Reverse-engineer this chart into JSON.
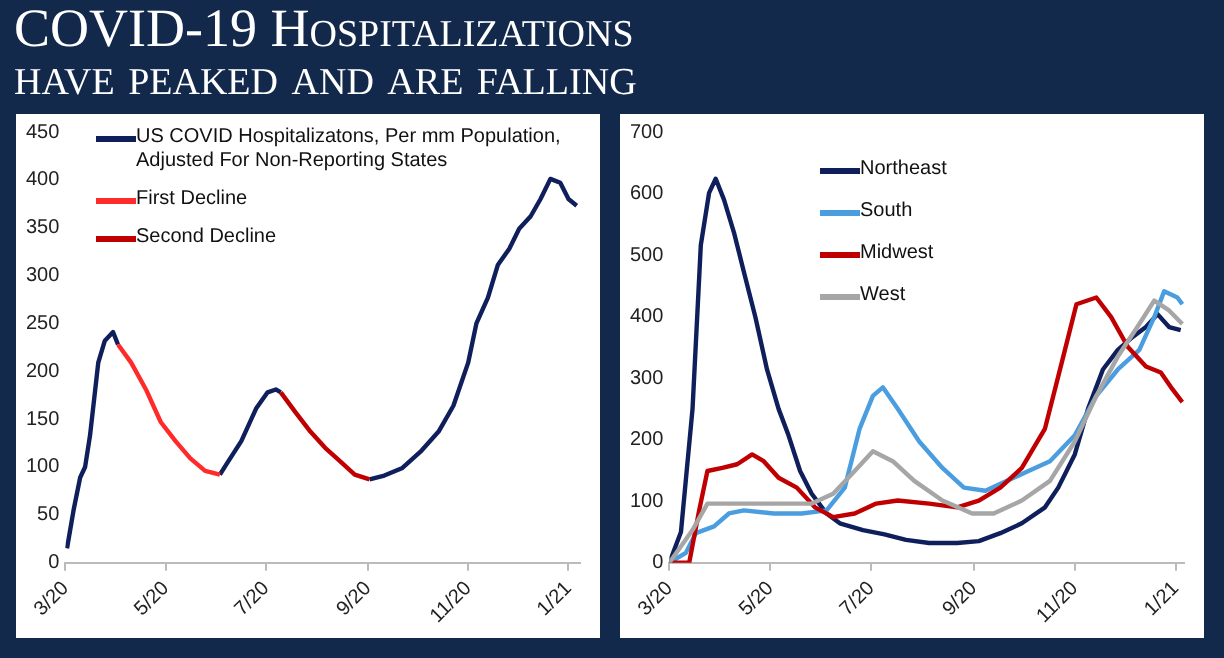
{
  "chart_data": [
    {
      "type": "line",
      "title": "COVID-19 Hospitalizations",
      "subtitle": "have peaked and are falling",
      "legend": "top left",
      "grid": false,
      "line_style": "solid",
      "xlim": [
        "2020-03-01",
        "2021-01-08"
      ],
      "xticks": [
        {
          "value": "2020-03-01",
          "label": "3/20"
        },
        {
          "value": "2020-05-01",
          "label": "5/20"
        },
        {
          "value": "2020-07-01",
          "label": "7/20"
        },
        {
          "value": "2020-09-01",
          "label": "9/20"
        },
        {
          "value": "2020-11-01",
          "label": "11/20"
        },
        {
          "value": "2021-01-01",
          "label": "1/21"
        }
      ],
      "ylim": [
        0,
        450
      ],
      "yticks": [
        0,
        50,
        100,
        150,
        200,
        250,
        300,
        350,
        400,
        450
      ],
      "series": [
        {
          "name": "US COVID Hospitalizatons, Per mm Population, Adjusted For Non-Reporting States",
          "color": "#0f1f5c",
          "x": [
            "2020-03-02",
            "2020-03-06",
            "2020-03-10",
            "2020-03-13",
            "2020-03-16",
            "2020-03-21",
            "2020-03-25",
            "2020-03-30",
            "2020-04-02",
            "2020-04-10",
            "2020-04-19",
            "2020-04-28",
            "2020-05-07",
            "2020-05-16",
            "2020-05-25",
            "2020-06-03",
            "2020-06-07",
            "2020-06-16",
            "2020-06-25",
            "2020-07-02",
            "2020-07-07",
            "2020-07-10",
            "2020-07-19",
            "2020-07-28",
            "2020-08-06",
            "2020-08-15",
            "2020-08-24",
            "2020-09-02",
            "2020-09-11",
            "2020-09-22",
            "2020-10-03",
            "2020-10-14",
            "2020-10-23",
            "2020-11-01",
            "2020-11-06",
            "2020-11-13",
            "2020-11-19",
            "2020-11-26",
            "2020-12-02",
            "2020-12-09",
            "2020-12-15",
            "2020-12-21",
            "2020-12-27",
            "2021-01-01",
            "2021-01-06"
          ],
          "values": [
            15,
            55,
            89,
            100,
            133,
            209,
            232,
            241,
            228,
            null,
            null,
            null,
            null,
            null,
            null,
            92,
            103,
            127,
            161,
            178,
            181,
            178,
            null,
            null,
            null,
            null,
            null,
            87,
            91,
            99,
            116,
            137,
            164,
            209,
            250,
            277,
            311,
            328,
            349,
            362,
            380,
            401,
            397,
            380,
            373
          ]
        },
        {
          "name": "First Decline",
          "color": "#ff2a2a",
          "x": [
            "2020-04-02",
            "2020-04-10",
            "2020-04-19",
            "2020-04-28",
            "2020-05-07",
            "2020-05-16",
            "2020-05-25",
            "2020-06-03"
          ],
          "values": [
            228,
            209,
            181,
            147,
            127,
            109,
            96,
            92
          ]
        },
        {
          "name": "Second Decline",
          "color": "#c00000",
          "x": [
            "2020-07-10",
            "2020-07-19",
            "2020-07-28",
            "2020-08-06",
            "2020-08-15",
            "2020-08-24",
            "2020-09-02"
          ],
          "values": [
            178,
            157,
            137,
            120,
            106,
            92,
            87
          ]
        }
      ]
    },
    {
      "type": "line",
      "legend": "top",
      "grid": false,
      "line_style": "solid",
      "xlim": [
        "2020-03-01",
        "2021-01-06"
      ],
      "xticks": [
        {
          "value": "2020-03-01",
          "label": "3/20"
        },
        {
          "value": "2020-05-01",
          "label": "5/20"
        },
        {
          "value": "2020-07-01",
          "label": "7/20"
        },
        {
          "value": "2020-09-01",
          "label": "9/20"
        },
        {
          "value": "2020-11-01",
          "label": "11/20"
        },
        {
          "value": "2021-01-01",
          "label": "1/21"
        }
      ],
      "ylim": [
        0,
        700
      ],
      "yticks": [
        0,
        100,
        200,
        300,
        400,
        500,
        600,
        700
      ],
      "series": [
        {
          "name": "Northeast",
          "color": "#0f1f5c",
          "x": [
            "2020-03-01",
            "2020-03-08",
            "2020-03-15",
            "2020-03-20",
            "2020-03-25",
            "2020-03-29",
            "2020-04-03",
            "2020-04-09",
            "2020-04-15",
            "2020-04-22",
            "2020-04-29",
            "2020-05-06",
            "2020-05-12",
            "2020-05-19",
            "2020-05-26",
            "2020-06-04",
            "2020-06-12",
            "2020-06-26",
            "2020-07-09",
            "2020-07-22",
            "2020-08-05",
            "2020-08-22",
            "2020-09-04",
            "2020-09-17",
            "2020-09-30",
            "2020-10-14",
            "2020-10-22",
            "2020-11-01",
            "2020-11-09",
            "2020-11-18",
            "2020-11-27",
            "2020-12-06",
            "2020-12-14",
            "2020-12-21",
            "2020-12-28",
            "2021-01-04"
          ],
          "values": [
            0,
            50,
            250,
            516,
            601,
            624,
            590,
            537,
            473,
            399,
            314,
            250,
            207,
            149,
            112,
            80,
            64,
            53,
            46,
            37,
            32,
            32,
            35,
            48,
            64,
            90,
            122,
            176,
            250,
            314,
            346,
            367,
            383,
            404,
            383,
            378
          ]
        },
        {
          "name": "South",
          "color": "#4a9ee0",
          "x": [
            "2020-03-01",
            "2020-03-11",
            "2020-03-17",
            "2020-03-28",
            "2020-04-06",
            "2020-04-15",
            "2020-05-03",
            "2020-05-20",
            "2020-06-04",
            "2020-06-15",
            "2020-06-24",
            "2020-07-02",
            "2020-07-08",
            "2020-07-17",
            "2020-07-30",
            "2020-08-13",
            "2020-08-26",
            "2020-09-08",
            "2020-09-21",
            "2020-10-04",
            "2020-10-17",
            "2020-11-01",
            "2020-11-14",
            "2020-11-27",
            "2020-12-10",
            "2020-12-19",
            "2020-12-25",
            "2021-01-02",
            "2021-01-05"
          ],
          "values": [
            0,
            16,
            48,
            59,
            80,
            85,
            80,
            80,
            85,
            122,
            218,
            271,
            285,
            250,
            197,
            154,
            122,
            117,
            133,
            149,
            165,
            207,
            271,
            314,
            346,
            399,
            441,
            431,
            420
          ]
        },
        {
          "name": "Midwest",
          "color": "#c00000",
          "x": [
            "2020-03-01",
            "2020-03-13",
            "2020-03-19",
            "2020-03-24",
            "2020-04-02",
            "2020-04-11",
            "2020-04-20",
            "2020-04-27",
            "2020-05-06",
            "2020-05-17",
            "2020-05-28",
            "2020-06-08",
            "2020-06-21",
            "2020-07-04",
            "2020-07-17",
            "2020-08-05",
            "2020-08-22",
            "2020-09-04",
            "2020-09-17",
            "2020-09-30",
            "2020-10-14",
            "2020-10-24",
            "2020-11-02",
            "2020-11-14",
            "2020-11-23",
            "2020-12-03",
            "2020-12-14",
            "2020-12-23",
            "2020-12-30",
            "2021-01-05"
          ],
          "values": [
            0,
            0,
            85,
            149,
            154,
            160,
            176,
            165,
            138,
            122,
            90,
            74,
            80,
            96,
            101,
            96,
            90,
            101,
            122,
            154,
            218,
            324,
            420,
            431,
            399,
            351,
            319,
            309,
            282,
            261
          ]
        },
        {
          "name": "West",
          "color": "#a6a6a6",
          "x": [
            "2020-03-01",
            "2020-03-15",
            "2020-03-24",
            "2020-04-11",
            "2020-05-03",
            "2020-05-26",
            "2020-06-08",
            "2020-06-21",
            "2020-07-02",
            "2020-07-14",
            "2020-07-27",
            "2020-08-13",
            "2020-08-31",
            "2020-09-13",
            "2020-09-30",
            "2020-10-17",
            "2020-11-01",
            "2020-11-14",
            "2020-11-27",
            "2020-12-10",
            "2020-12-19",
            "2020-12-28",
            "2021-01-05"
          ],
          "values": [
            0,
            53,
            96,
            96,
            96,
            96,
            112,
            149,
            181,
            165,
            133,
            101,
            80,
            80,
            101,
            133,
            197,
            271,
            335,
            388,
            426,
            410,
            388
          ]
        }
      ]
    }
  ]
}
